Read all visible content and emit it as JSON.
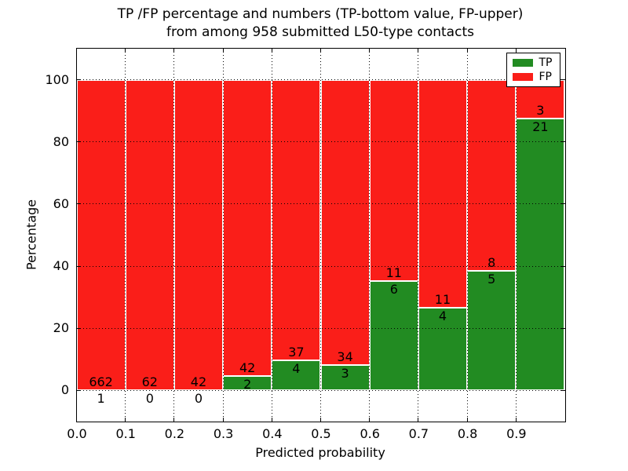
{
  "title": {
    "line1": "TP /FP percentage and numbers (TP-bottom value, FP-upper)",
    "line2": "from among 958 submitted L50-type contacts"
  },
  "axes": {
    "xlabel": "Predicted probability",
    "ylabel": "Percentage",
    "x_tick_labels": [
      "0.0",
      "0.1",
      "0.2",
      "0.3",
      "0.4",
      "0.5",
      "0.6",
      "0.7",
      "0.8",
      "0.9"
    ],
    "y_tick_labels": [
      "0",
      "20",
      "40",
      "60",
      "80",
      "100"
    ],
    "y_grid_values": [
      0,
      20,
      40,
      60,
      80,
      100
    ]
  },
  "legend": {
    "items": [
      {
        "label": "TP",
        "color": "#228b22"
      },
      {
        "label": "FP",
        "color": "#fa1e19"
      }
    ]
  },
  "colors": {
    "tp": "#228b22",
    "fp": "#fa1e19",
    "bar_edge": "#ffffff",
    "grid": "#000000",
    "background": "#ffffff"
  },
  "chart_data": {
    "type": "bar",
    "stacked": true,
    "normalized_to_percent": true,
    "title": "TP /FP percentage and numbers (TP-bottom value, FP-upper) from among 958 submitted L50-type contacts",
    "xlabel": "Predicted probability",
    "ylabel": "Percentage",
    "xlim": [
      0.0,
      1.0
    ],
    "ylim": [
      -10,
      110
    ],
    "bin_width": 0.1,
    "grid": true,
    "legend_position": "upper right",
    "total_contacts": 958,
    "categories": [
      "0.0-0.1",
      "0.1-0.2",
      "0.2-0.3",
      "0.3-0.4",
      "0.4-0.5",
      "0.5-0.6",
      "0.6-0.7",
      "0.7-0.8",
      "0.8-0.9",
      "0.9-1.0"
    ],
    "series": [
      {
        "name": "TP",
        "color": "#228b22",
        "counts": [
          1,
          0,
          0,
          2,
          4,
          3,
          6,
          4,
          5,
          21
        ]
      },
      {
        "name": "FP",
        "color": "#fa1e19",
        "counts": [
          662,
          62,
          42,
          42,
          37,
          34,
          11,
          11,
          8,
          3
        ]
      }
    ],
    "tp_percent_by_bin": [
      0.15,
      0.0,
      0.0,
      4.55,
      9.76,
      8.11,
      35.29,
      26.67,
      38.46,
      87.5
    ]
  }
}
